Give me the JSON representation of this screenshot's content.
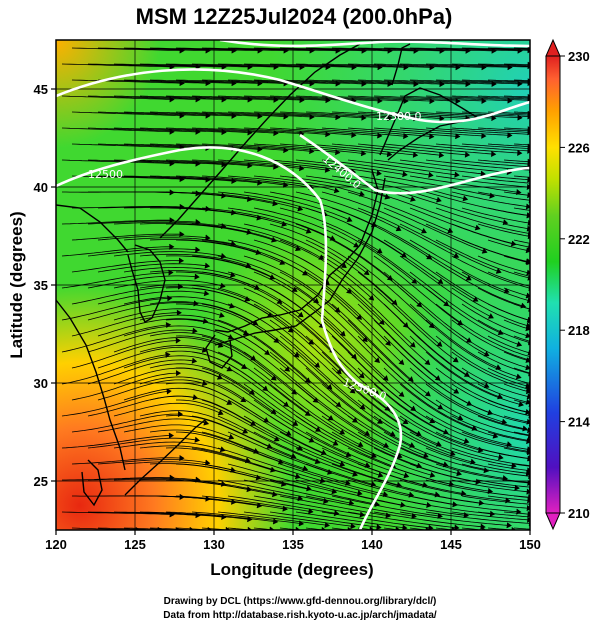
{
  "title": "MSM 12Z25Jul2024 (200.0hPa)",
  "map": {
    "x_axis": {
      "label": "Longitude (degrees)",
      "range": [
        120,
        150
      ],
      "ticks": [
        "120",
        "125",
        "130",
        "135",
        "140",
        "145",
        "150"
      ]
    },
    "y_axis": {
      "label": "Latitude  (degrees)",
      "range": [
        22.5,
        47.5
      ],
      "ticks": [
        "25",
        "30",
        "35",
        "40",
        "45"
      ]
    },
    "grid": true,
    "field": "temperature (K)",
    "vectors": "wind streamlines",
    "contours": [
      {
        "label": "12500.0",
        "level": 12500.0
      },
      {
        "label": "12400.0",
        "level": 12400.0
      },
      {
        "label": "12300.0",
        "level": 12300.0
      },
      {
        "label": "12500",
        "level": 12500
      }
    ]
  },
  "colorbar": {
    "ticks": [
      "230",
      "226",
      "222",
      "218",
      "214",
      "210"
    ],
    "min": 210,
    "max": 230,
    "colors": [
      "#e020c0",
      "#5010c0",
      "#2040e0",
      "#10b0e0",
      "#20e0b0",
      "#20d020",
      "#60d020",
      "#c0e000",
      "#ffe000",
      "#ffa000",
      "#ff6030",
      "#e02020"
    ]
  },
  "credits": {
    "line1": "Drawing by DCL (https://www.gfd-dennou.org/library/dcl/)",
    "line2": "Data from http://database.rish.kyoto-u.ac.jp/arch/jmadata/"
  }
}
